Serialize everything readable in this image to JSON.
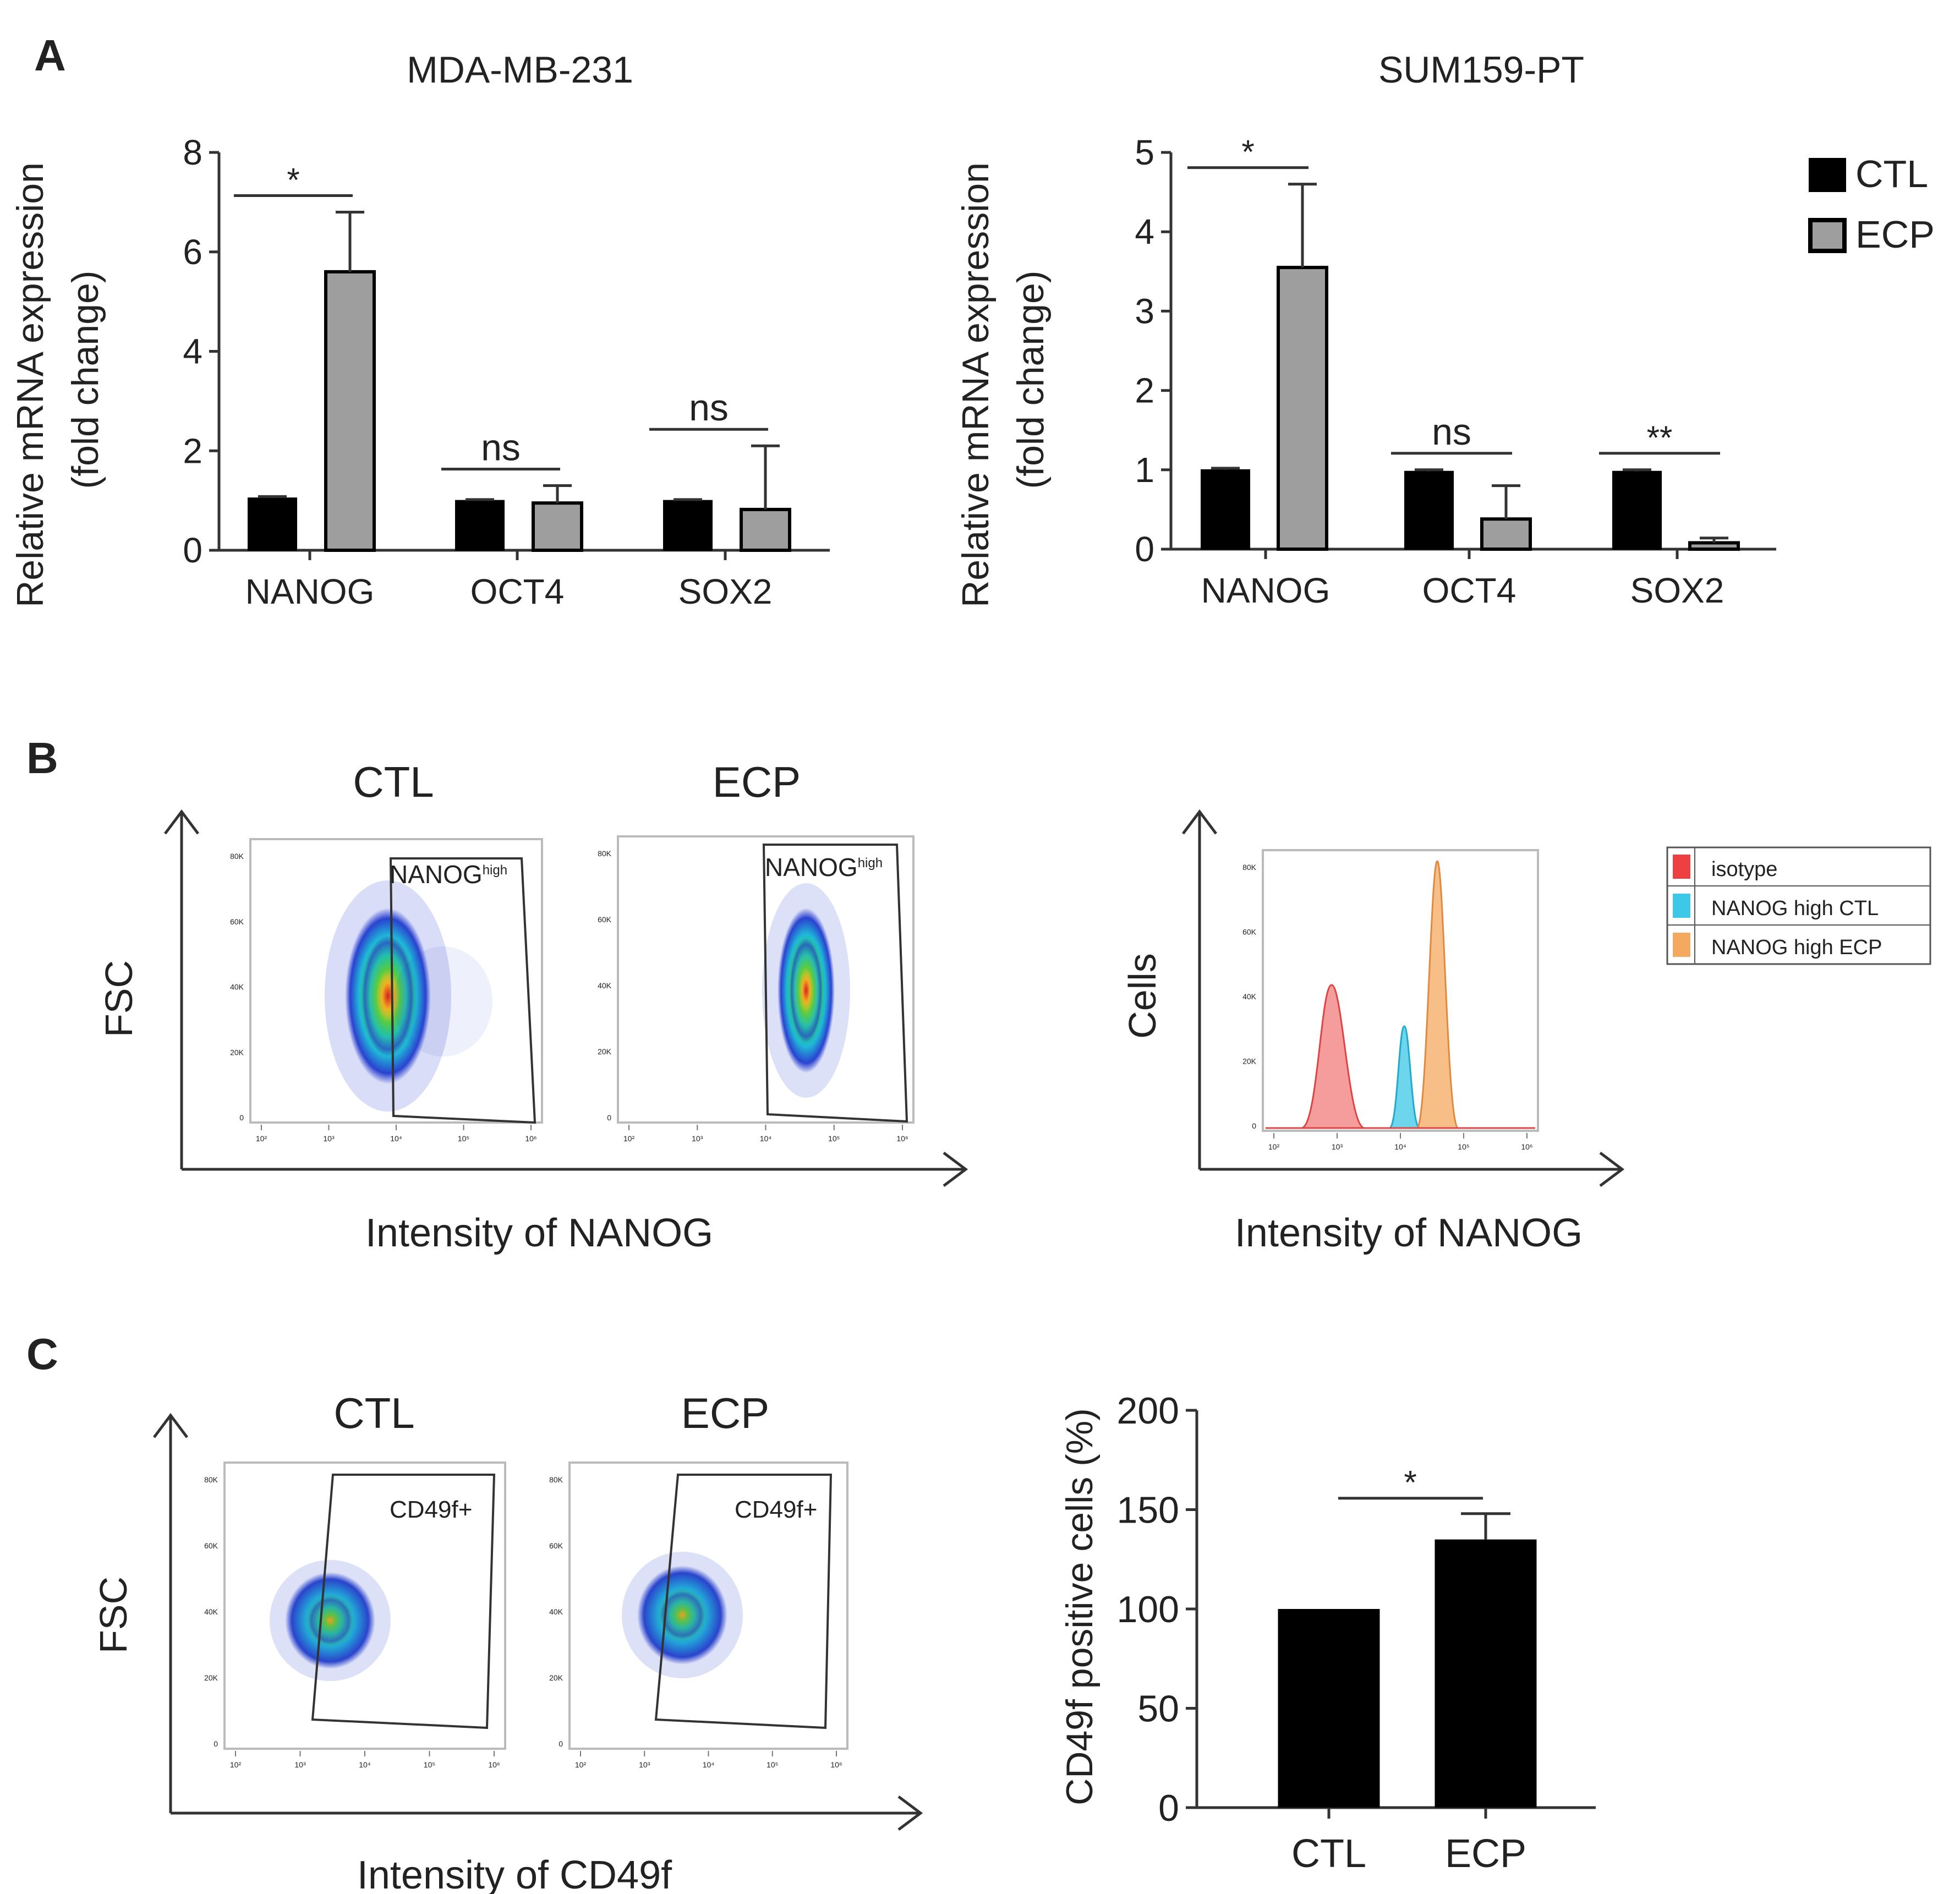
{
  "panel_letters": [
    "A",
    "B",
    "C"
  ],
  "colors": {
    "ctl": "#000000",
    "ecp": "#9e9e9e",
    "isotype": "#ee5a5a",
    "nanog_high_ctl": "#3cc8e6",
    "nanog_high_ecp": "#f4a860"
  },
  "legend_a": [
    {
      "label": "CTL",
      "color": "#000000"
    },
    {
      "label": "ECP",
      "color": "#9e9e9e"
    }
  ],
  "panel_b": {
    "group_labels": [
      "CTL",
      "ECP"
    ],
    "gate_label": "NANOG",
    "gate_sup": "high",
    "scatter_ylabel": "FSC",
    "scatter_xlabel": "Intensity of NANOG",
    "hist_ylabel": "Cells",
    "hist_xlabel": "Intensity of NANOG",
    "hist_legend": [
      {
        "label": "isotype",
        "color": "#ee5a5a"
      },
      {
        "label": "NANOG high CTL",
        "color": "#3cc8e6"
      },
      {
        "label": "NANOG high ECP",
        "color": "#f4a860"
      }
    ],
    "cytometry_ticks_y": [
      "80K",
      "60K",
      "40K",
      "20K",
      "0"
    ],
    "cytometry_ticks_x": [
      "10²",
      "10³",
      "10⁴",
      "10⁵",
      "10⁶"
    ]
  },
  "panel_c": {
    "group_labels": [
      "CTL",
      "ECP"
    ],
    "gate_label": "CD49f+",
    "scatter_ylabel": "FSC",
    "scatter_xlabel": "Intensity of CD49f"
  },
  "chart_data": [
    {
      "type": "bar",
      "title": "MDA-MB-231",
      "ylabel": "Relative mRNA expression (fold change)",
      "ylabel_lines": [
        "Relative mRNA expression",
        "(fold change)"
      ],
      "xlabel": "",
      "categories": [
        "NANOG",
        "OCT4",
        "SOX2"
      ],
      "series": [
        {
          "name": "CTL",
          "values": [
            1.05,
            1.0,
            1.0
          ],
          "errors": [
            0.03,
            0.02,
            0.02
          ]
        },
        {
          "name": "ECP",
          "values": [
            5.6,
            0.95,
            0.82
          ],
          "errors": [
            1.2,
            0.35,
            1.28
          ]
        }
      ],
      "ylim": [
        0,
        8
      ],
      "yticks": [
        0,
        2,
        4,
        6,
        8
      ],
      "significance": [
        "*",
        "ns",
        "ns"
      ],
      "legend": "top-right"
    },
    {
      "type": "bar",
      "title": "SUM159-PT",
      "ylabel": "Relative mRNA expression (fold change)",
      "ylabel_lines": [
        "Relative mRNA expression",
        "(fold change)"
      ],
      "xlabel": "",
      "categories": [
        "NANOG",
        "OCT4",
        "SOX2"
      ],
      "series": [
        {
          "name": "CTL",
          "values": [
            1.0,
            0.98,
            0.98
          ],
          "errors": [
            0.02,
            0.02,
            0.02
          ]
        },
        {
          "name": "ECP",
          "values": [
            3.55,
            0.38,
            0.08
          ],
          "errors": [
            1.05,
            0.42,
            0.06
          ]
        }
      ],
      "ylim": [
        0,
        5
      ],
      "yticks": [
        0,
        1,
        2,
        3,
        4,
        5
      ],
      "significance": [
        "*",
        "ns",
        "**"
      ],
      "legend": "top-right"
    },
    {
      "type": "bar",
      "title": "",
      "ylabel": "CD49f positive cells (%)",
      "xlabel": "",
      "categories": [
        "CTL",
        "ECP"
      ],
      "series": [
        {
          "name": "CD49f positive cells",
          "values": [
            100,
            135
          ],
          "errors": [
            0,
            13
          ]
        }
      ],
      "ylim": [
        0,
        200
      ],
      "yticks": [
        0,
        50,
        100,
        150,
        200
      ],
      "significance": [
        "*"
      ],
      "legend": "none"
    }
  ]
}
